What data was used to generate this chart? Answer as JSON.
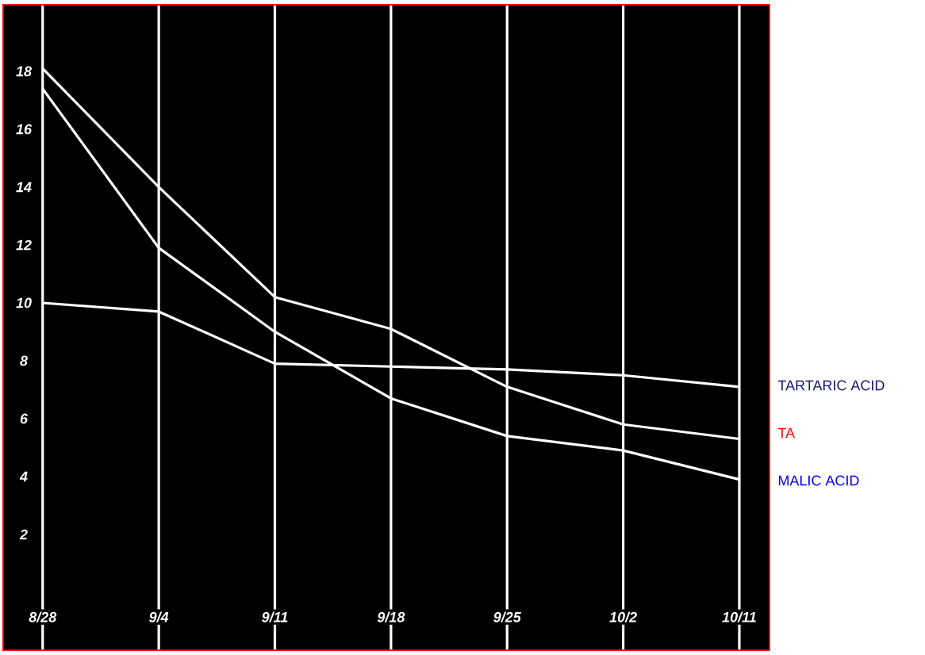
{
  "chart_data": {
    "type": "line",
    "categories": [
      "8/28",
      "9/4",
      "9/11",
      "9/18",
      "9/25",
      "10/2",
      "10/11"
    ],
    "series": [
      {
        "name": "TARTARIC ACID",
        "color": "#ffffff",
        "values": [
          10.0,
          9.7,
          7.9,
          7.8,
          7.7,
          7.5,
          7.1
        ]
      },
      {
        "name": "TA",
        "color": "#ffffff",
        "values": [
          18.1,
          14.0,
          10.2,
          9.1,
          7.1,
          5.8,
          5.3
        ]
      },
      {
        "name": "MALIC ACID",
        "color": "#ffffff",
        "values": [
          17.4,
          11.9,
          9.0,
          6.7,
          5.4,
          4.9,
          3.9
        ]
      }
    ],
    "ylim": [
      -2,
      20.3
    ],
    "yticks": [
      2,
      4,
      6,
      8,
      10,
      12,
      14,
      16,
      18
    ],
    "grid": "x",
    "legend": "right",
    "marker": "none",
    "line_style": "solid"
  }
}
